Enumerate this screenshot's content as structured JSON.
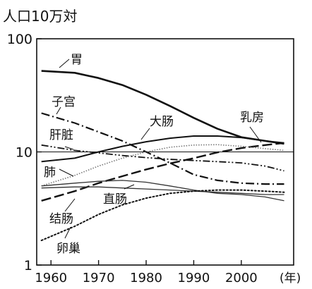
{
  "chart_data": {
    "type": "line",
    "ylabel": "人口10万対",
    "xlabel": "",
    "x_unit_label": "(年)",
    "y_scale": "log",
    "ylim": [
      1,
      100
    ],
    "xlim": [
      1957,
      2011
    ],
    "y_ticks": [
      {
        "value": 1,
        "label": "1"
      },
      {
        "value": 10,
        "label": "10"
      },
      {
        "value": 100,
        "label": "100"
      }
    ],
    "x_ticks": [
      {
        "value": 1960,
        "label": "1960"
      },
      {
        "value": 1970,
        "label": "1970"
      },
      {
        "value": 1980,
        "label": "1980"
      },
      {
        "value": 1990,
        "label": "1990"
      },
      {
        "value": 2000,
        "label": "2000"
      }
    ],
    "reference_line": 10,
    "series": [
      {
        "name": "胃",
        "style": "solid",
        "width": 2.6,
        "color": "#111111",
        "x": [
          1958,
          1965,
          1970,
          1975,
          1980,
          1985,
          1990,
          1995,
          2000,
          2005,
          2009
        ],
        "y": [
          52,
          50,
          45,
          39,
          32,
          25.5,
          20,
          16,
          13.5,
          12.5,
          11.8
        ]
      },
      {
        "name": "子宫",
        "style": "dashdot",
        "width": 2.2,
        "color": "#111111",
        "x": [
          1958,
          1965,
          1970,
          1975,
          1980,
          1985,
          1990,
          1995,
          2000,
          2005,
          2009
        ],
        "y": [
          22,
          18,
          15,
          12.5,
          10,
          8,
          6.3,
          5.6,
          5.3,
          5.2,
          5.2
        ]
      },
      {
        "name": "肝脏",
        "style": "dashdotdot",
        "width": 1.8,
        "color": "#111111",
        "x": [
          1958,
          1965,
          1970,
          1975,
          1980,
          1985,
          1990,
          1995,
          2000,
          2005,
          2009
        ],
        "y": [
          11.5,
          10.3,
          9.8,
          9.3,
          8.9,
          8.6,
          8.4,
          8.2,
          8.0,
          7.5,
          6.8
        ]
      },
      {
        "name": "大肠",
        "style": "solid",
        "width": 2.0,
        "color": "#111111",
        "x": [
          1958,
          1965,
          1970,
          1975,
          1980,
          1985,
          1990,
          1995,
          2000,
          2005,
          2009
        ],
        "y": [
          8.2,
          8.8,
          10.0,
          11.2,
          12.3,
          13.2,
          13.8,
          13.8,
          13.4,
          12.5,
          12.0
        ]
      },
      {
        "name": "乳房",
        "style": "longdash",
        "width": 2.4,
        "color": "#111111",
        "x": [
          1958,
          1965,
          1970,
          1975,
          1980,
          1985,
          1990,
          1995,
          2000,
          2005,
          2009
        ],
        "y": [
          3.7,
          4.5,
          5.3,
          6.1,
          7.0,
          7.9,
          8.8,
          9.9,
          10.8,
          11.5,
          12.0
        ]
      },
      {
        "name": "肺",
        "style": "dotted-gray",
        "width": 1.6,
        "color": "#777777",
        "x": [
          1958,
          1965,
          1970,
          1975,
          1980,
          1985,
          1990,
          1995,
          2000,
          2005,
          2009
        ],
        "y": [
          5.0,
          6.2,
          7.5,
          8.8,
          10.0,
          11.0,
          11.5,
          11.6,
          11.2,
          10.7,
          10.3
        ]
      },
      {
        "name": "直肠",
        "style": "solid-thin",
        "width": 1.3,
        "color": "#333333",
        "x": [
          1958,
          1965,
          1970,
          1975,
          1980,
          1985,
          1990,
          1995,
          2000,
          2005,
          2009
        ],
        "y": [
          5.0,
          5.3,
          5.5,
          5.6,
          5.4,
          5.0,
          4.6,
          4.3,
          4.2,
          4.0,
          3.7
        ]
      },
      {
        "name": "结肠",
        "style": "solid-thin",
        "width": 1.3,
        "color": "#333333",
        "x": [
          1958,
          1965,
          1970,
          1975,
          1980,
          1985,
          1990,
          1995,
          2000,
          2005,
          2009
        ],
        "y": [
          4.8,
          4.9,
          4.9,
          4.8,
          4.7,
          4.6,
          4.5,
          4.4,
          4.3,
          4.2,
          4.2
        ]
      },
      {
        "name": "卵巢",
        "style": "dotted",
        "width": 2.0,
        "color": "#111111",
        "x": [
          1958,
          1965,
          1970,
          1975,
          1980,
          1985,
          1990,
          1995,
          2000,
          2005,
          2009
        ],
        "y": [
          1.65,
          2.2,
          2.8,
          3.4,
          3.9,
          4.3,
          4.5,
          4.6,
          4.6,
          4.5,
          4.4
        ]
      }
    ]
  }
}
